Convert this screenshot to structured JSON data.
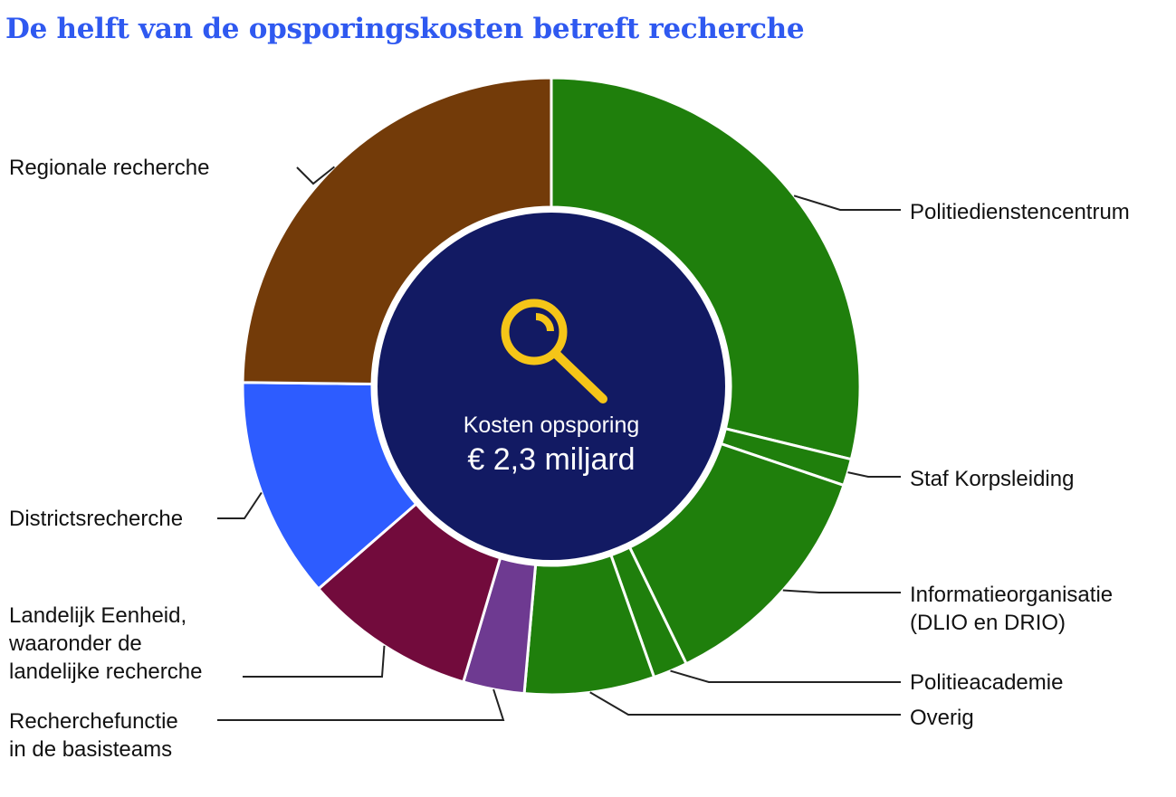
{
  "title": "De helft van de opsporingskosten betreft recherche",
  "center": {
    "label": "Kosten opsporing",
    "value": "€ 2,3 miljard",
    "icon": "magnifier-icon",
    "color": "#121a63",
    "icon_color": "#f5c518"
  },
  "chart_data": {
    "type": "pie",
    "subtype": "donut",
    "total_label": "€ 2,3 miljard",
    "slices": [
      {
        "key": "politiedienstencentrum",
        "label": "Politiedienstencentrum",
        "value": 28.8,
        "color": "#1f7f0c"
      },
      {
        "key": "staf-korpsleiding",
        "label": "Staf Korpsleiding",
        "value": 1.4,
        "color": "#1f7f0c"
      },
      {
        "key": "informatieorganisatie",
        "label": "Informatieorganisatie (DLIO en DRIO)",
        "value": 12.6,
        "color": "#1f7f0c"
      },
      {
        "key": "politieacademie",
        "label": "Politieacademie",
        "value": 1.8,
        "color": "#1f7f0c"
      },
      {
        "key": "overig",
        "label": "Overig",
        "value": 6.8,
        "color": "#1f7f0c"
      },
      {
        "key": "recherchefunctie-basisteams",
        "label": "Recherchefunctie in de basisteams",
        "value": 3.2,
        "color": "#6e3a91"
      },
      {
        "key": "landelijke-eenheid",
        "label": "Landelijk Eenheid, waaronder de landelijke recherche",
        "value": 9.0,
        "color": "#720b3c"
      },
      {
        "key": "districtsrecherche",
        "label": "Districtsrecherche",
        "value": 11.6,
        "color": "#2d5cff"
      },
      {
        "key": "regionale-recherche",
        "label": "Regionale recherche",
        "value": 24.8,
        "color": "#733b09"
      }
    ]
  },
  "labels": {
    "regionale": [
      "Regionale recherche"
    ],
    "politiedienstencentrum": [
      "Politiedienstencentrum"
    ],
    "staf": [
      "Staf Korpsleiding"
    ],
    "districts": [
      "Districtsrecherche"
    ],
    "informatie": [
      "Informatieorganisatie",
      "(DLIO en DRIO)"
    ],
    "landelijk": [
      "Landelijk Eenheid,",
      "waaronder de",
      "landelijke recherche"
    ],
    "academie": [
      "Politieacademie"
    ],
    "overig": [
      "Overig"
    ],
    "basisteams": [
      "Recherchefunctie",
      "in de basisteams"
    ]
  }
}
